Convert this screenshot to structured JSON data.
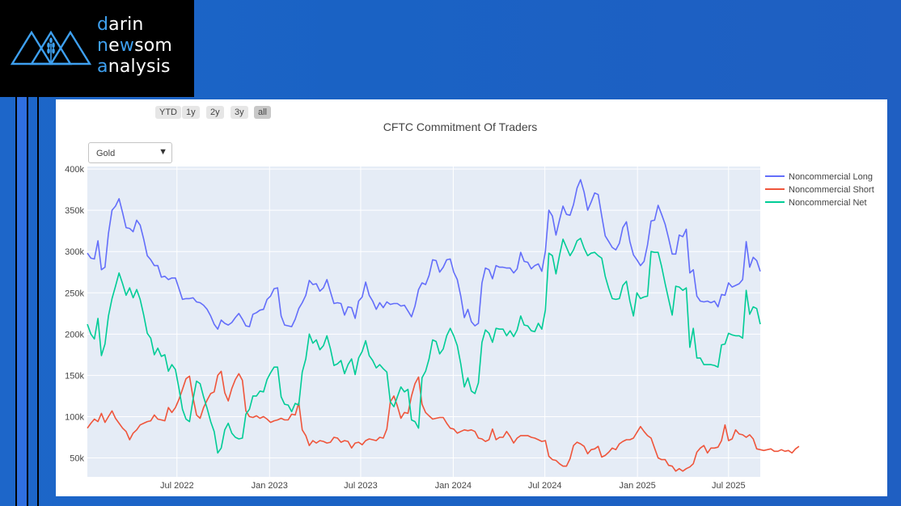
{
  "brand": {
    "line1_accent": "d",
    "line1_rest": "arin",
    "line2_accent": "n",
    "line2_mid": "e",
    "line2_accent2": "w",
    "line2_rest": "som",
    "line3_accent": "a",
    "line3_rest": "nalysis"
  },
  "range_buttons": [
    "YTD",
    "1y",
    "2y",
    "3y",
    "all"
  ],
  "range_active": "all",
  "dropdown": {
    "selected": "Gold"
  },
  "colors": {
    "long": "#636efa",
    "short": "#ef553b",
    "net": "#00cc96",
    "plot_bg": "#e5ecf6",
    "accent": "#3ea0f0"
  },
  "chart_data": {
    "type": "line",
    "title": "CFTC Commitment Of Traders",
    "x_start": "2022-01-04",
    "x_step_days": 7,
    "x_ticks": [
      {
        "date": "2022-07-01",
        "label": "Jul 2022"
      },
      {
        "date": "2023-01-01",
        "label": "Jan 2023"
      },
      {
        "date": "2023-07-01",
        "label": "Jul 2023"
      },
      {
        "date": "2024-01-01",
        "label": "Jan 2024"
      },
      {
        "date": "2024-07-01",
        "label": "Jul 2024"
      },
      {
        "date": "2025-01-01",
        "label": "Jan 2025"
      },
      {
        "date": "2025-07-01",
        "label": "Jul 2025"
      }
    ],
    "y_ticks": [
      {
        "value": 50000,
        "label": "50k"
      },
      {
        "value": 100000,
        "label": "100k"
      },
      {
        "value": 150000,
        "label": "150k"
      },
      {
        "value": 200000,
        "label": "200k"
      },
      {
        "value": 250000,
        "label": "250k"
      },
      {
        "value": 300000,
        "label": "300k"
      },
      {
        "value": 350000,
        "label": "350k"
      },
      {
        "value": 400000,
        "label": "400k"
      }
    ],
    "ylim": [
      27000,
      403000
    ],
    "legend_position": "top-right",
    "grid": true,
    "series": [
      {
        "name": "Noncommercial Long",
        "key": "long",
        "values": [
          298000,
          292000,
          291000,
          313000,
          278000,
          281000,
          322000,
          350000,
          355000,
          364000,
          347000,
          329000,
          328000,
          324000,
          338000,
          332000,
          315000,
          295000,
          290000,
          283000,
          283000,
          269000,
          270000,
          266000,
          268000,
          268000,
          255000,
          242000,
          243000,
          243000,
          244000,
          239000,
          238000,
          235000,
          230000,
          222000,
          212000,
          206000,
          217000,
          213000,
          211000,
          214000,
          220000,
          225000,
          218000,
          210000,
          209000,
          224000,
          226000,
          229000,
          230000,
          242000,
          246000,
          255000,
          256000,
          222000,
          211000,
          210000,
          209000,
          218000,
          231000,
          238000,
          247000,
          265000,
          260000,
          261000,
          252000,
          256000,
          266000,
          251000,
          237000,
          238000,
          237000,
          223000,
          233000,
          232000,
          219000,
          240000,
          245000,
          263000,
          247000,
          240000,
          230000,
          238000,
          232000,
          239000,
          236000,
          237000,
          237000,
          234000,
          235000,
          228000,
          221000,
          234000,
          254000,
          262000,
          260000,
          271000,
          290000,
          289000,
          275000,
          281000,
          290000,
          291000,
          275000,
          266000,
          246000,
          220000,
          230000,
          215000,
          210000,
          213000,
          262000,
          280000,
          278000,
          267000,
          283000,
          281000,
          281000,
          280000,
          280000,
          274000,
          279000,
          299000,
          288000,
          287000,
          279000,
          283000,
          285000,
          276000,
          300000,
          350000,
          343000,
          320000,
          338000,
          355000,
          345000,
          344000,
          357000,
          377000,
          387000,
          372000,
          350000,
          360000,
          371000,
          369000,
          343000,
          319000,
          312000,
          305000,
          302000,
          310000,
          329000,
          336000,
          312000,
          296000,
          290000,
          283000,
          288000,
          308000,
          337000,
          338000,
          356000,
          345000,
          333000,
          316000,
          297000,
          297000,
          320000,
          318000,
          327000,
          274000,
          278000,
          246000,
          240000,
          239000,
          240000,
          238000,
          240000,
          233000,
          248000,
          247000,
          262000,
          257000,
          259000,
          261000,
          266000,
          312000,
          281000,
          293000,
          289000,
          276000
        ]
      },
      {
        "name": "Noncommercial Short",
        "key": "short",
        "values": [
          86000,
          92000,
          97000,
          94000,
          104000,
          93000,
          100000,
          107000,
          98000,
          92000,
          86000,
          82000,
          72000,
          80000,
          84000,
          90000,
          92000,
          94000,
          95000,
          102000,
          97000,
          96000,
          95000,
          111000,
          105000,
          111000,
          121000,
          133000,
          146000,
          149000,
          123000,
          102000,
          98000,
          111000,
          120000,
          128000,
          130000,
          150000,
          155000,
          129000,
          119000,
          134000,
          145000,
          152000,
          144000,
          107000,
          100000,
          99000,
          101000,
          98000,
          100000,
          97000,
          93000,
          95000,
          96000,
          98000,
          96000,
          96000,
          103000,
          102000,
          117000,
          84000,
          77000,
          65000,
          71000,
          68000,
          71000,
          70000,
          68000,
          69000,
          75000,
          74000,
          69000,
          71000,
          70000,
          62000,
          68000,
          69000,
          66000,
          71000,
          73000,
          72000,
          71000,
          75000,
          74000,
          85000,
          118000,
          125000,
          113000,
          98000,
          105000,
          104000,
          125000,
          140000,
          148000,
          115000,
          105000,
          101000,
          97000,
          98000,
          99000,
          99000,
          92000,
          86000,
          85000,
          80000,
          82000,
          84000,
          83000,
          84000,
          82000,
          74000,
          73000,
          70000,
          72000,
          85000,
          72000,
          75000,
          75000,
          82000,
          76000,
          68000,
          74000,
          77000,
          77000,
          77000,
          75000,
          74000,
          72000,
          70000,
          71000,
          52000,
          48000,
          47000,
          43000,
          40000,
          40000,
          49000,
          65000,
          69000,
          67000,
          64000,
          55000,
          60000,
          61000,
          64000,
          51000,
          53000,
          57000,
          62000,
          60000,
          67000,
          70000,
          72000,
          72000,
          74000,
          81000,
          88000,
          82000,
          77000,
          74000,
          62000,
          50000,
          48000,
          48000,
          41000,
          40000,
          34000,
          37000,
          34000,
          37000,
          39000,
          43000,
          57000,
          62000,
          65000,
          56000,
          62000,
          62000,
          63000,
          71000,
          90000,
          71000,
          73000,
          84000,
          79000,
          78000,
          75000,
          78000,
          73000,
          61000,
          60000,
          59000,
          60000,
          61000,
          58000,
          58000,
          60000,
          58000,
          59000,
          56000,
          61000,
          64000
        ]
      },
      {
        "name": "Noncommercial Net",
        "key": "net",
        "values": [
          212000,
          200000,
          194000,
          219000,
          174000,
          188000,
          222000,
          243000,
          258000,
          274000,
          261000,
          247000,
          256000,
          244000,
          254000,
          242000,
          223000,
          201000,
          195000,
          175000,
          183000,
          173000,
          175000,
          155000,
          163000,
          157000,
          134000,
          109000,
          97000,
          94000,
          121000,
          143000,
          140000,
          124000,
          110000,
          94000,
          82000,
          56000,
          62000,
          84000,
          92000,
          80000,
          75000,
          73000,
          74000,
          103000,
          109000,
          125000,
          125000,
          131000,
          130000,
          145000,
          153000,
          160000,
          160000,
          124000,
          115000,
          114000,
          106000,
          116000,
          114000,
          154000,
          170000,
          200000,
          189000,
          193000,
          181000,
          186000,
          198000,
          182000,
          162000,
          164000,
          168000,
          152000,
          163000,
          170000,
          151000,
          171000,
          179000,
          192000,
          174000,
          168000,
          159000,
          163000,
          158000,
          154000,
          118000,
          112000,
          124000,
          136000,
          130000,
          133000,
          96000,
          94000,
          86000,
          147000,
          155000,
          170000,
          193000,
          191000,
          176000,
          182000,
          198000,
          207000,
          198000,
          186000,
          164000,
          136000,
          147000,
          131000,
          128000,
          141000,
          190000,
          205000,
          201000,
          190000,
          207000,
          206000,
          206000,
          198000,
          204000,
          197000,
          205000,
          222000,
          211000,
          210000,
          204000,
          203000,
          213000,
          206000,
          229000,
          298000,
          295000,
          273000,
          295000,
          315000,
          305000,
          295000,
          302000,
          313000,
          316000,
          304000,
          295000,
          298000,
          299000,
          295000,
          292000,
          270000,
          255000,
          243000,
          242000,
          243000,
          259000,
          264000,
          240000,
          222000,
          250000,
          243000,
          245000,
          246000,
          300000,
          299000,
          299000,
          282000,
          261000,
          242000,
          223000,
          258000,
          257000,
          253000,
          256000,
          184000,
          207000,
          171000,
          171000,
          163000,
          163000,
          163000,
          162000,
          160000,
          187000,
          188000,
          201000,
          199000,
          198000,
          198000,
          195000,
          253000,
          224000,
          233000,
          231000,
          212000
        ]
      }
    ]
  }
}
